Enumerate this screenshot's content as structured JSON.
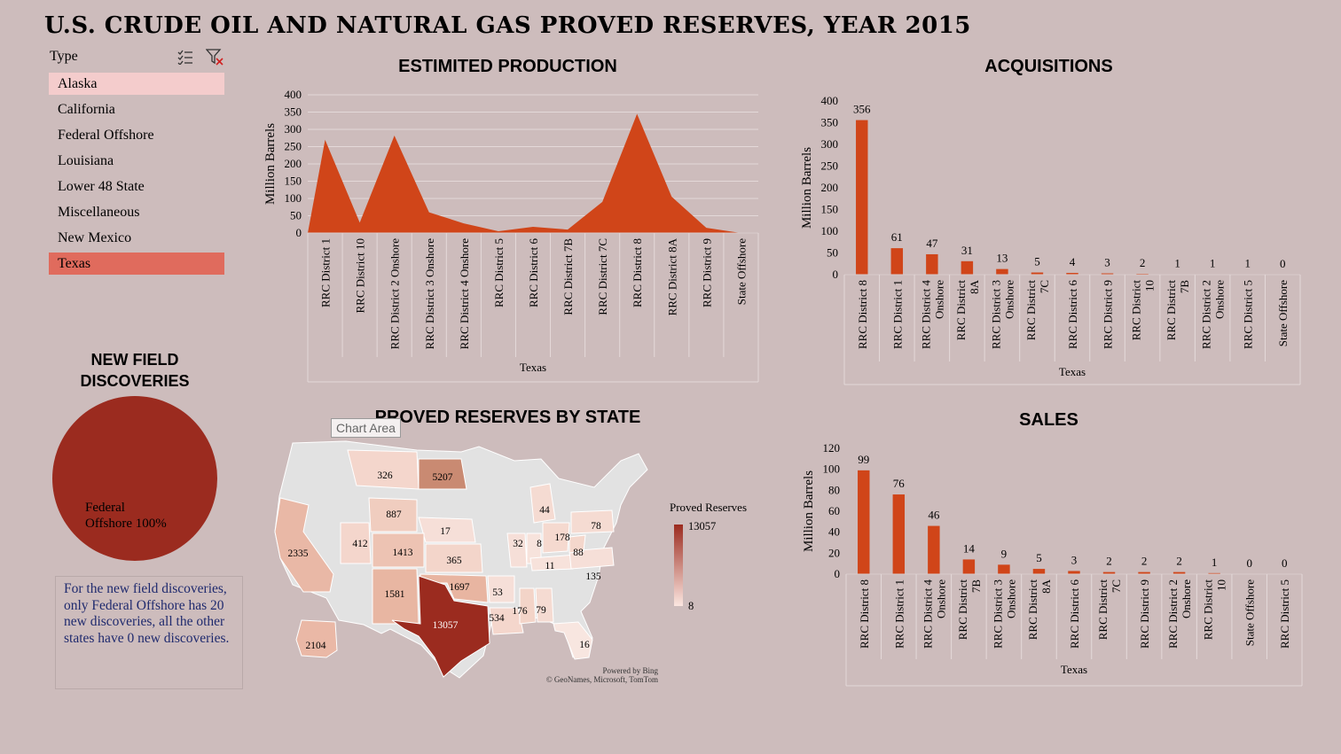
{
  "title": "U.S. CRUDE OIL AND NATURAL GAS PROVED RESERVES, YEAR 2015",
  "slicer": {
    "header": "Type",
    "multi_select_icon": "multi-select-icon",
    "clear_filter_icon": "clear-filter-icon",
    "items": [
      "Alaska",
      "California",
      "Federal Offshore",
      "Louisiana",
      "Lower 48 State",
      "Miscellaneous",
      "New Mexico",
      "Texas"
    ]
  },
  "new_field": {
    "title_line1": "NEW FIELD",
    "title_line2": "DISCOVERIES",
    "slice_label_line1": "Federal",
    "slice_label_line2": "Offshore 100%",
    "note": "For the new field discoveries, only Federal Offshore has 20 new discoveries, all the other states have 0 new discoveries."
  },
  "map": {
    "title": "PROVED RESERVES BY STATE",
    "tooltip": "Chart Area",
    "legend_title": "Proved Reserves",
    "legend_max": "13057",
    "legend_min": "8",
    "credit_line1": "Powered by Bing",
    "credit_line2": "© GeoNames, Microsoft, TomTom",
    "labels": [
      "326",
      "5207",
      "887",
      "17",
      "412",
      "1413",
      "365",
      "2335",
      "1581",
      "1697",
      "13057",
      "53",
      "534",
      "176",
      "79",
      "32",
      "8",
      "178",
      "78",
      "88",
      "11",
      "44",
      "135",
      "16",
      "2104"
    ]
  },
  "chart_data": [
    {
      "type": "area",
      "title": "ESTIMITED PRODUCTION",
      "ylabel": "Million Barrels",
      "xlabel": "Texas",
      "ylim": [
        0,
        400
      ],
      "yticks": [
        "0",
        "50",
        "100",
        "150",
        "200",
        "250",
        "300",
        "350",
        "400"
      ],
      "categories": [
        "RRC District 1",
        "RRC District 10",
        "RRC District 2 Onshore",
        "RRC District 3 Onshore",
        "RRC District 4 Onshore",
        "RRC District 5",
        "RRC District 6",
        "RRC District 7B",
        "RRC District 7C",
        "RRC District 8",
        "RRC District 8A",
        "RRC District 9",
        "State Offshore"
      ],
      "values": [
        270,
        30,
        282,
        60,
        28,
        5,
        18,
        10,
        90,
        345,
        105,
        15,
        0
      ],
      "color": "#d04519"
    },
    {
      "type": "bar",
      "title": "ACQUISITIONS",
      "ylabel": "Million Barrels",
      "xlabel": "Texas",
      "ylim": [
        0,
        400
      ],
      "yticks": [
        "0",
        "50",
        "100",
        "150",
        "200",
        "250",
        "300",
        "350",
        "400"
      ],
      "categories": [
        "RRC District 8",
        "RRC District 1",
        "RRC District 4 Onshore",
        "RRC District 8A",
        "RRC District 3 Onshore",
        "RRC District 7C",
        "RRC District 6",
        "RRC District 9",
        "RRC District 10",
        "RRC District 7B",
        "RRC District 2 Onshore",
        "RRC District 5",
        "State Offshore"
      ],
      "values": [
        356,
        61,
        47,
        31,
        13,
        5,
        4,
        3,
        2,
        1,
        1,
        1,
        0
      ],
      "data_labels": [
        "356",
        "61",
        "47",
        "31",
        "13",
        "5",
        "4",
        "3",
        "2",
        "1",
        "1",
        "1",
        "0"
      ],
      "color": "#d04519"
    },
    {
      "type": "bar",
      "title": "SALES",
      "ylabel": "Million Barrels",
      "xlabel": "Texas",
      "ylim": [
        0,
        120
      ],
      "yticks": [
        "0",
        "20",
        "40",
        "60",
        "80",
        "100",
        "120"
      ],
      "categories": [
        "RRC District 8",
        "RRC District 1",
        "RRC District 4 Onshore",
        "RRC District 7B",
        "RRC District 3 Onshore",
        "RRC District 8A",
        "RRC District 6",
        "RRC District 7C",
        "RRC District 9",
        "RRC District 2 Onshore",
        "RRC District 10",
        "State Offshore",
        "RRC District 5"
      ],
      "values": [
        99,
        76,
        46,
        14,
        9,
        5,
        3,
        2,
        2,
        2,
        1,
        0,
        0
      ],
      "data_labels": [
        "99",
        "76",
        "46",
        "14",
        "9",
        "5",
        "3",
        "2",
        "2",
        "2",
        "1",
        "0",
        "0"
      ],
      "color": "#d04519"
    },
    {
      "type": "pie",
      "title": "NEW FIELD DISCOVERIES",
      "categories": [
        "Federal Offshore"
      ],
      "values": [
        100
      ],
      "color": "#9b2b1f"
    }
  ]
}
